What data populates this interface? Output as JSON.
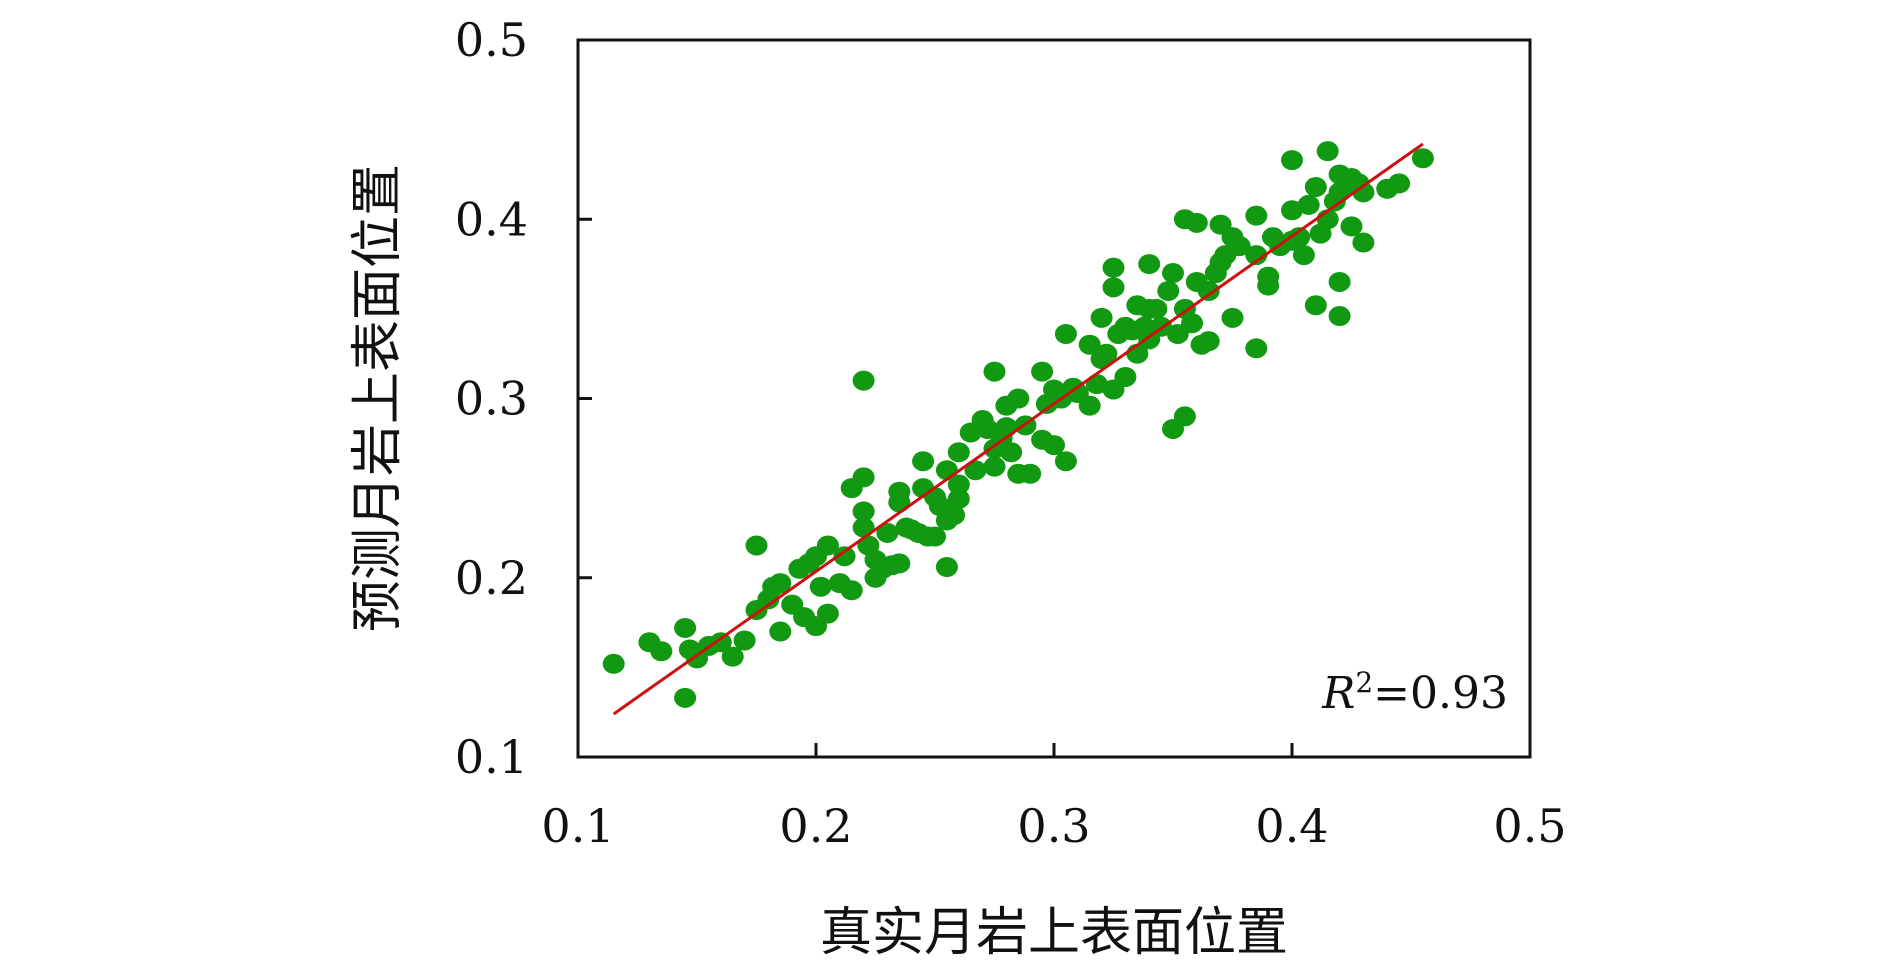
{
  "chart_data": {
    "type": "scatter",
    "xlabel": "真实月岩上表面位置",
    "ylabel": "预测月岩上表面位置",
    "xlim": [
      0.1,
      0.5
    ],
    "ylim": [
      0.1,
      0.5
    ],
    "x_ticks": [
      "0.1",
      "0.2",
      "0.3",
      "0.4",
      "0.5"
    ],
    "y_ticks": [
      "0.1",
      "0.2",
      "0.3",
      "0.4",
      "0.5"
    ],
    "grid": false,
    "annotation": {
      "prefix": "R",
      "superscript": "2",
      "value": "=0.93"
    },
    "colors": {
      "points": "#119911",
      "fit_line": "#cc1111",
      "axes": "#111111"
    },
    "fit_line": {
      "x": [
        0.115,
        0.455
      ],
      "y": [
        0.124,
        0.442
      ]
    },
    "series": [
      {
        "points": [
          [
            0.115,
            0.152
          ],
          [
            0.13,
            0.164
          ],
          [
            0.135,
            0.159
          ],
          [
            0.145,
            0.172
          ],
          [
            0.145,
            0.133
          ],
          [
            0.147,
            0.16
          ],
          [
            0.15,
            0.155
          ],
          [
            0.155,
            0.162
          ],
          [
            0.16,
            0.164
          ],
          [
            0.165,
            0.156
          ],
          [
            0.17,
            0.165
          ],
          [
            0.175,
            0.182
          ],
          [
            0.175,
            0.218
          ],
          [
            0.18,
            0.188
          ],
          [
            0.182,
            0.195
          ],
          [
            0.185,
            0.197
          ],
          [
            0.185,
            0.17
          ],
          [
            0.19,
            0.185
          ],
          [
            0.193,
            0.205
          ],
          [
            0.195,
            0.178
          ],
          [
            0.197,
            0.208
          ],
          [
            0.2,
            0.173
          ],
          [
            0.2,
            0.212
          ],
          [
            0.202,
            0.195
          ],
          [
            0.205,
            0.18
          ],
          [
            0.205,
            0.218
          ],
          [
            0.21,
            0.197
          ],
          [
            0.212,
            0.212
          ],
          [
            0.215,
            0.25
          ],
          [
            0.215,
            0.193
          ],
          [
            0.22,
            0.31
          ],
          [
            0.22,
            0.256
          ],
          [
            0.22,
            0.237
          ],
          [
            0.22,
            0.228
          ],
          [
            0.222,
            0.218
          ],
          [
            0.225,
            0.21
          ],
          [
            0.225,
            0.2
          ],
          [
            0.228,
            0.205
          ],
          [
            0.23,
            0.225
          ],
          [
            0.232,
            0.207
          ],
          [
            0.235,
            0.242
          ],
          [
            0.235,
            0.248
          ],
          [
            0.235,
            0.208
          ],
          [
            0.238,
            0.228
          ],
          [
            0.24,
            0.227
          ],
          [
            0.243,
            0.225
          ],
          [
            0.245,
            0.265
          ],
          [
            0.245,
            0.25
          ],
          [
            0.247,
            0.223
          ],
          [
            0.25,
            0.245
          ],
          [
            0.25,
            0.223
          ],
          [
            0.252,
            0.24
          ],
          [
            0.255,
            0.26
          ],
          [
            0.255,
            0.232
          ],
          [
            0.255,
            0.206
          ],
          [
            0.258,
            0.235
          ],
          [
            0.26,
            0.27
          ],
          [
            0.26,
            0.252
          ],
          [
            0.26,
            0.244
          ],
          [
            0.265,
            0.281
          ],
          [
            0.267,
            0.26
          ],
          [
            0.27,
            0.288
          ],
          [
            0.272,
            0.283
          ],
          [
            0.275,
            0.315
          ],
          [
            0.275,
            0.272
          ],
          [
            0.275,
            0.262
          ],
          [
            0.278,
            0.278
          ],
          [
            0.28,
            0.296
          ],
          [
            0.28,
            0.284
          ],
          [
            0.282,
            0.27
          ],
          [
            0.285,
            0.3
          ],
          [
            0.285,
            0.258
          ],
          [
            0.288,
            0.285
          ],
          [
            0.29,
            0.258
          ],
          [
            0.295,
            0.315
          ],
          [
            0.295,
            0.277
          ],
          [
            0.297,
            0.297
          ],
          [
            0.3,
            0.305
          ],
          [
            0.3,
            0.274
          ],
          [
            0.303,
            0.3
          ],
          [
            0.305,
            0.336
          ],
          [
            0.305,
            0.265
          ],
          [
            0.308,
            0.306
          ],
          [
            0.31,
            0.303
          ],
          [
            0.315,
            0.33
          ],
          [
            0.315,
            0.296
          ],
          [
            0.318,
            0.308
          ],
          [
            0.32,
            0.345
          ],
          [
            0.32,
            0.322
          ],
          [
            0.322,
            0.325
          ],
          [
            0.325,
            0.373
          ],
          [
            0.325,
            0.362
          ],
          [
            0.325,
            0.305
          ],
          [
            0.327,
            0.336
          ],
          [
            0.33,
            0.34
          ],
          [
            0.33,
            0.312
          ],
          [
            0.333,
            0.338
          ],
          [
            0.335,
            0.352
          ],
          [
            0.335,
            0.325
          ],
          [
            0.338,
            0.34
          ],
          [
            0.34,
            0.375
          ],
          [
            0.34,
            0.35
          ],
          [
            0.34,
            0.333
          ],
          [
            0.343,
            0.35
          ],
          [
            0.345,
            0.34
          ],
          [
            0.348,
            0.36
          ],
          [
            0.35,
            0.37
          ],
          [
            0.35,
            0.283
          ],
          [
            0.352,
            0.336
          ],
          [
            0.355,
            0.4
          ],
          [
            0.355,
            0.35
          ],
          [
            0.355,
            0.29
          ],
          [
            0.358,
            0.342
          ],
          [
            0.36,
            0.398
          ],
          [
            0.36,
            0.365
          ],
          [
            0.362,
            0.33
          ],
          [
            0.365,
            0.36
          ],
          [
            0.365,
            0.332
          ],
          [
            0.368,
            0.37
          ],
          [
            0.37,
            0.397
          ],
          [
            0.37,
            0.376
          ],
          [
            0.372,
            0.38
          ],
          [
            0.375,
            0.345
          ],
          [
            0.375,
            0.39
          ],
          [
            0.378,
            0.385
          ],
          [
            0.385,
            0.402
          ],
          [
            0.385,
            0.38
          ],
          [
            0.385,
            0.328
          ],
          [
            0.39,
            0.368
          ],
          [
            0.39,
            0.363
          ],
          [
            0.392,
            0.39
          ],
          [
            0.395,
            0.385
          ],
          [
            0.4,
            0.433
          ],
          [
            0.4,
            0.405
          ],
          [
            0.4,
            0.388
          ],
          [
            0.403,
            0.39
          ],
          [
            0.405,
            0.38
          ],
          [
            0.407,
            0.408
          ],
          [
            0.41,
            0.418
          ],
          [
            0.41,
            0.352
          ],
          [
            0.412,
            0.392
          ],
          [
            0.415,
            0.438
          ],
          [
            0.415,
            0.4
          ],
          [
            0.418,
            0.41
          ],
          [
            0.42,
            0.425
          ],
          [
            0.42,
            0.415
          ],
          [
            0.42,
            0.365
          ],
          [
            0.42,
            0.346
          ],
          [
            0.422,
            0.418
          ],
          [
            0.425,
            0.423
          ],
          [
            0.425,
            0.396
          ],
          [
            0.428,
            0.42
          ],
          [
            0.43,
            0.387
          ],
          [
            0.43,
            0.415
          ],
          [
            0.44,
            0.417
          ],
          [
            0.445,
            0.42
          ],
          [
            0.455,
            0.434
          ]
        ]
      }
    ]
  }
}
